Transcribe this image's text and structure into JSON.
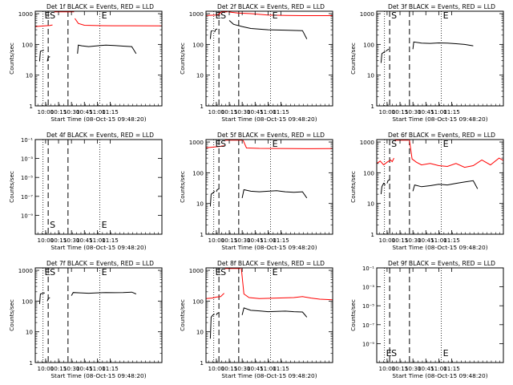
{
  "chart_data": [
    {
      "type": "line",
      "detector": "Det 1f",
      "title": "Det 1f BLACK = Events, RED = LLD",
      "xlabel": "Start Time (08-Oct-15 09:48:20)",
      "ylabel": "Counts/sec",
      "xticks": [
        "10:00",
        "10:15",
        "10:30",
        "10:45",
        "11:00",
        "11:15"
      ],
      "yscale": "log",
      "yticks": [
        "1",
        "10",
        "100",
        "1000"
      ],
      "ylim": [
        1,
        1200
      ],
      "markers": [
        "E",
        "S",
        "E"
      ],
      "series": [
        {
          "name": "LLD",
          "color": "#ff0000",
          "segments": [
            {
              "t": [
                588,
                595,
                600,
                605,
                608
              ],
              "v": [
                380,
                395,
                405,
                415,
                430
              ]
            },
            {
              "t": [
                610,
                612,
                630,
                633
              ],
              "v": [
                1150,
                1150,
                1150,
                1150
              ]
            },
            {
              "t": [
                634,
                638,
                645,
                660,
                680,
                700,
                735
              ],
              "v": [
                700,
                480,
                420,
                410,
                405,
                405,
                400
              ]
            }
          ]
        },
        {
          "name": "Events",
          "color": "#000000",
          "segments": [
            {
              "t": [
                593,
                594,
                596,
                598
              ],
              "v": [
                28,
                60,
                62,
                65
              ]
            },
            {
              "t": [
                602,
                603,
                605
              ],
              "v": [
                28,
                38,
                40
              ]
            },
            {
              "t": [
                637,
                638,
                642,
                650,
                660,
                670,
                680,
                690,
                700,
                705
              ],
              "v": [
                50,
                95,
                90,
                85,
                90,
                95,
                92,
                88,
                85,
                50
              ]
            }
          ]
        }
      ]
    },
    {
      "type": "line",
      "detector": "Det 2f",
      "title": "Det 2f BLACK = Events, RED = LLD",
      "xlabel": "Start Time (08-Oct-15 09:48:20)",
      "ylabel": "Counts/sec",
      "xticks": [
        "10:00",
        "10:15",
        "10:30",
        "10:45",
        "11:00",
        "11:15"
      ],
      "yscale": "log",
      "yticks": [
        "1",
        "10",
        "100",
        "1000"
      ],
      "ylim": [
        1,
        1200
      ],
      "markers": [
        "E",
        "S",
        "E"
      ],
      "series": [
        {
          "name": "LLD",
          "color": "#ff0000",
          "segments": [
            {
              "t": [
                588,
                595,
                600,
                603,
                606,
                610,
                613
              ],
              "v": [
                880,
                890,
                900,
                950,
                1150,
                1150,
                1150
              ]
            },
            {
              "t": [
                614,
                618,
                625,
                640,
                660,
                680,
                700,
                735
              ],
              "v": [
                1150,
                1100,
                1050,
                1000,
                900,
                880,
                860,
                860
              ]
            }
          ]
        },
        {
          "name": "Events",
          "color": "#000000",
          "segments": [
            {
              "t": [
                593,
                594,
                596
              ],
              "v": [
                150,
                270,
                280
              ]
            },
            {
              "t": [
                598,
                599,
                601
              ],
              "v": [
                250,
                300,
                320
              ]
            },
            {
              "t": [
                615,
                620,
                630,
                640,
                660,
                680,
                700,
                705
              ],
              "v": [
                600,
                450,
                380,
                330,
                300,
                290,
                280,
                150
              ]
            }
          ]
        }
      ]
    },
    {
      "type": "line",
      "detector": "Det 3f",
      "title": "Det 3f BLACK = Events, RED = LLD",
      "xlabel": "Start Time (08-Oct-15 09:48:20)",
      "ylabel": "Counts/sec",
      "xticks": [
        "10:00",
        "10:15",
        "10:30",
        "10:45",
        "11:00",
        "11:15"
      ],
      "yscale": "log",
      "yticks": [
        "1",
        "10",
        "100",
        "1000"
      ],
      "ylim": [
        1,
        1200
      ],
      "markers": [
        "S",
        "E"
      ],
      "series": [
        {
          "name": "Events",
          "color": "#000000",
          "segments": [
            {
              "t": [
                593,
                594,
                596,
                598
              ],
              "v": [
                25,
                50,
                55,
                60
              ]
            },
            {
              "t": [
                599,
                600,
                602
              ],
              "v": [
                60,
                65,
                70
              ]
            },
            {
              "t": [
                630,
                631,
                640,
                650,
                660,
                670,
                680,
                690,
                700
              ],
              "v": [
                70,
                120,
                110,
                108,
                112,
                110,
                105,
                100,
                90
              ]
            }
          ]
        }
      ]
    },
    {
      "type": "line",
      "detector": "Det 4f",
      "title": "Det 4f BLACK = Events, RED = LLD",
      "xlabel": "Start Time (08-Oct-15 09:48:20)",
      "ylabel": "Counts/sec",
      "xticks": [
        "10:00",
        "10:15",
        "10:30",
        "10:45",
        "11:00",
        "11:15"
      ],
      "yscale": "log",
      "yticks": [
        "10⁻⁹",
        "10⁻⁷",
        "10⁻⁵",
        "10⁻³",
        "10⁻¹"
      ],
      "ylim": [
        1e-11,
        0.1
      ],
      "markers": [
        "S",
        "E"
      ],
      "series": []
    },
    {
      "type": "line",
      "detector": "Det 5f",
      "title": "Det 5f BLACK = Events, RED = LLD",
      "xlabel": "Start Time (08-Oct-15 09:48:20)",
      "ylabel": "Counts/sec",
      "xticks": [
        "10:00",
        "10:15",
        "10:30",
        "10:45",
        "11:00",
        "11:15"
      ],
      "yscale": "log",
      "yticks": [
        "1",
        "10",
        "100",
        "1000"
      ],
      "ylim": [
        1,
        1200
      ],
      "markers": [
        "E",
        "S",
        "E"
      ],
      "series": [
        {
          "name": "LLD",
          "color": "#ff0000",
          "segments": [
            {
              "t": [
                588,
                595,
                600,
                605,
                609
              ],
              "v": [
                650,
                680,
                700,
                720,
                760
              ]
            },
            {
              "t": [
                610,
                612,
                630
              ],
              "v": [
                1150,
                1150,
                1150
              ]
            },
            {
              "t": [
                631,
                635,
                650,
                670,
                690,
                710,
                735
              ],
              "v": [
                1150,
                640,
                620,
                615,
                610,
                605,
                610
              ]
            }
          ]
        },
        {
          "name": "Events",
          "color": "#000000",
          "segments": [
            {
              "t": [
                593,
                594,
                596,
                598
              ],
              "v": [
                8,
                20,
                22,
                25
              ]
            },
            {
              "t": [
                600,
                601,
                603
              ],
              "v": [
                24,
                28,
                30
              ]
            },
            {
              "t": [
                630,
                632,
                640,
                650,
                660,
                670,
                680,
                690,
                700,
                705
              ],
              "v": [
                15,
                28,
                25,
                24,
                25,
                26,
                24,
                23,
                24,
                15
              ]
            }
          ]
        }
      ]
    },
    {
      "type": "line",
      "detector": "Det 6f",
      "title": "Det 6f BLACK = Events, RED = LLD",
      "xlabel": "Start Time (08-Oct-15 09:48:20)",
      "ylabel": "Counts/sec",
      "xticks": [
        "10:00",
        "10:15",
        "10:30",
        "10:45",
        "11:00",
        "11:15"
      ],
      "yscale": "log",
      "yticks": [
        "1",
        "10",
        "100",
        "1000"
      ],
      "ylim": [
        1,
        1200
      ],
      "markers": [
        "S",
        "E"
      ],
      "series": [
        {
          "name": "LLD",
          "color": "#ff0000",
          "segments": [
            {
              "t": [
                588,
                592,
                596,
                600,
                604,
                606,
                608
              ],
              "v": [
                200,
                240,
                180,
                220,
                260,
                230,
                300
              ]
            },
            {
              "t": [
                609,
                612,
                625
              ],
              "v": [
                1150,
                1150,
                1150
              ]
            },
            {
              "t": [
                626,
                629,
                634,
                640,
                650,
                660,
                670,
                680,
                690,
                700,
                710,
                720,
                730,
                735
              ],
              "v": [
                1150,
                280,
                220,
                180,
                200,
                170,
                160,
                200,
                150,
                170,
                260,
                180,
                300,
                250
              ]
            }
          ]
        },
        {
          "name": "Events",
          "color": "#000000",
          "segments": [
            {
              "t": [
                593,
                594,
                596,
                598
              ],
              "v": [
                20,
                35,
                45,
                40
              ]
            },
            {
              "t": [
                600,
                601,
                603
              ],
              "v": [
                45,
                55,
                60
              ]
            },
            {
              "t": [
                630,
                632,
                640,
                650,
                660,
                670,
                680,
                690,
                700,
                705
              ],
              "v": [
                25,
                40,
                35,
                38,
                42,
                40,
                45,
                50,
                55,
                30
              ]
            }
          ]
        }
      ]
    },
    {
      "type": "line",
      "detector": "Det 7f",
      "title": "Det 7f BLACK = Events, RED = LLD",
      "xlabel": "Start Time (08-Oct-15 09:48:20)",
      "ylabel": "Counts/sec",
      "xticks": [
        "10:00",
        "10:15",
        "10:30",
        "10:45",
        "11:00",
        "11:15"
      ],
      "yscale": "log",
      "yticks": [
        "1",
        "10",
        "100",
        "1000"
      ],
      "ylim": [
        1,
        1200
      ],
      "markers": [
        "E",
        "S",
        "E"
      ],
      "series": [
        {
          "name": "Events",
          "color": "#000000",
          "segments": [
            {
              "t": [
                593,
                594,
                597,
                599
              ],
              "v": [
                80,
                170,
                180,
                185
              ]
            },
            {
              "t": [
                602,
                603,
                605
              ],
              "v": [
                100,
                120,
                130
              ]
            },
            {
              "t": [
                630,
                632,
                640,
                650,
                660,
                670,
                680,
                690,
                700,
                705
              ],
              "v": [
                150,
                190,
                185,
                180,
                185,
                190,
                188,
                190,
                195,
                170
              ]
            }
          ]
        }
      ]
    },
    {
      "type": "line",
      "detector": "Det 8f",
      "title": "Det 8f BLACK = Events, RED = LLD",
      "xlabel": "Start Time (08-Oct-15 09:48:20)",
      "ylabel": "Counts/sec",
      "xticks": [
        "10:00",
        "10:15",
        "10:30",
        "10:45",
        "11:00",
        "11:15"
      ],
      "yscale": "log",
      "yticks": [
        "1",
        "10",
        "100",
        "1000"
      ],
      "ylim": [
        1,
        1200
      ],
      "markers": [
        "E",
        "S",
        "E"
      ],
      "series": [
        {
          "name": "LLD",
          "color": "#ff0000",
          "segments": [
            {
              "t": [
                588,
                595,
                600,
                605,
                609
              ],
              "v": [
                120,
                125,
                135,
                140,
                180
              ]
            },
            {
              "t": [
                610,
                612,
                628
              ],
              "v": [
                1150,
                1150,
                1150
              ]
            },
            {
              "t": [
                629,
                632,
                638,
                650,
                670,
                690,
                700,
                710,
                720,
                735
              ],
              "v": [
                1150,
                170,
                130,
                120,
                125,
                130,
                140,
                125,
                115,
                110
              ]
            }
          ]
        },
        {
          "name": "Events",
          "color": "#000000",
          "segments": [
            {
              "t": [
                593,
                594,
                596,
                598
              ],
              "v": [
                6,
                30,
                35,
                38
              ]
            },
            {
              "t": [
                600,
                601,
                603
              ],
              "v": [
                35,
                40,
                42
              ]
            },
            {
              "t": [
                630,
                632,
                640,
                650,
                660,
                670,
                680,
                690,
                700,
                705
              ],
              "v": [
                35,
                60,
                50,
                48,
                45,
                46,
                47,
                45,
                44,
                30
              ]
            }
          ]
        }
      ]
    },
    {
      "type": "line",
      "detector": "Det 9f",
      "title": "Det 9f BLACK = Events, RED = LLD",
      "xlabel": "Start Time (08-Oct-15 09:48:20)",
      "ylabel": "Counts/sec",
      "xticks": [
        "10:00",
        "10:15",
        "10:30",
        "10:45",
        "11:00",
        "11:15"
      ],
      "yscale": "log",
      "yticks": [
        "10⁻⁹",
        "10⁻⁷",
        "10⁻⁵",
        "10⁻³",
        "10⁻¹"
      ],
      "ylim": [
        1e-11,
        0.1
      ],
      "markers": [
        "E",
        "S",
        "E"
      ],
      "series": []
    }
  ]
}
